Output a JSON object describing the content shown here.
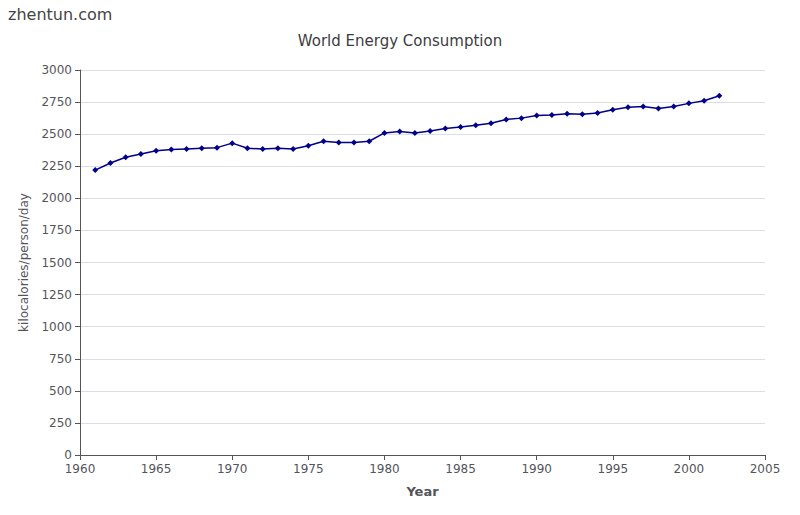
{
  "chart_data": {
    "type": "line",
    "title": "World Energy Consumption",
    "xlabel": "Year",
    "ylabel": "kilocalories/person/day",
    "annotations": [
      "zhentun.com"
    ],
    "color": "#00008B",
    "marker": "diamond",
    "grid": true,
    "xlim": [
      1960,
      2005
    ],
    "xticks": [
      1960,
      1965,
      1970,
      1975,
      1980,
      1985,
      1990,
      1995,
      2000,
      2005
    ],
    "ylim": [
      0,
      3000
    ],
    "yticks": [
      0,
      250,
      500,
      750,
      1000,
      1250,
      1500,
      1750,
      2000,
      2250,
      2500,
      2750,
      3000
    ],
    "x": [
      1961,
      1962,
      1963,
      1964,
      1965,
      1966,
      1967,
      1968,
      1969,
      1970,
      1971,
      1972,
      1973,
      1974,
      1975,
      1976,
      1977,
      1978,
      1979,
      1980,
      1981,
      1982,
      1983,
      1984,
      1985,
      1986,
      1987,
      1988,
      1989,
      1990,
      1991,
      1992,
      1993,
      1994,
      1995,
      1996,
      1997,
      1998,
      1999,
      2000,
      2001,
      2002
    ],
    "values": [
      2220,
      2275,
      2320,
      2345,
      2370,
      2380,
      2385,
      2390,
      2395,
      2430,
      2390,
      2385,
      2390,
      2385,
      2410,
      2445,
      2435,
      2435,
      2445,
      2510,
      2520,
      2510,
      2525,
      2545,
      2555,
      2570,
      2585,
      2615,
      2625,
      2645,
      2650,
      2660,
      2655,
      2665,
      2690,
      2710,
      2715,
      2700,
      2715,
      2740,
      2760,
      2800
    ]
  }
}
